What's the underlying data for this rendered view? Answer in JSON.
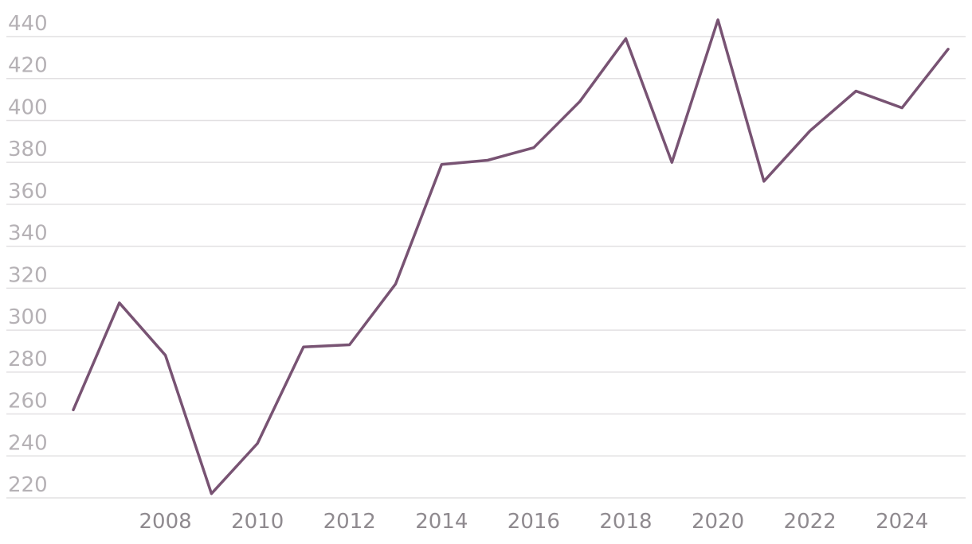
{
  "chart_data": {
    "type": "line",
    "title": "",
    "xlabel": "",
    "ylabel": "",
    "x": [
      2006,
      2007,
      2008,
      2009,
      2010,
      2011,
      2012,
      2013,
      2014,
      2015,
      2016,
      2017,
      2018,
      2019,
      2020,
      2021,
      2022,
      2023,
      2024,
      2025
    ],
    "series": [
      {
        "values": [
          262,
          313,
          288,
          222,
          246,
          292,
          293,
          322,
          379,
          381,
          387,
          409,
          439,
          380,
          448,
          371,
          395,
          414,
          406,
          434
        ],
        "color": "#785373"
      }
    ],
    "xticks": [
      "2008",
      "2010",
      "2012",
      "2014",
      "2016",
      "2018",
      "2020",
      "2022",
      "2024"
    ],
    "yticks": [
      "440",
      "420",
      "400",
      "380",
      "360",
      "340",
      "320",
      "300",
      "280",
      "260",
      "240",
      "220"
    ],
    "ylim": [
      214,
      448
    ],
    "xlim": [
      2005.25,
      2025.55
    ],
    "grid": true,
    "legend": "none"
  }
}
